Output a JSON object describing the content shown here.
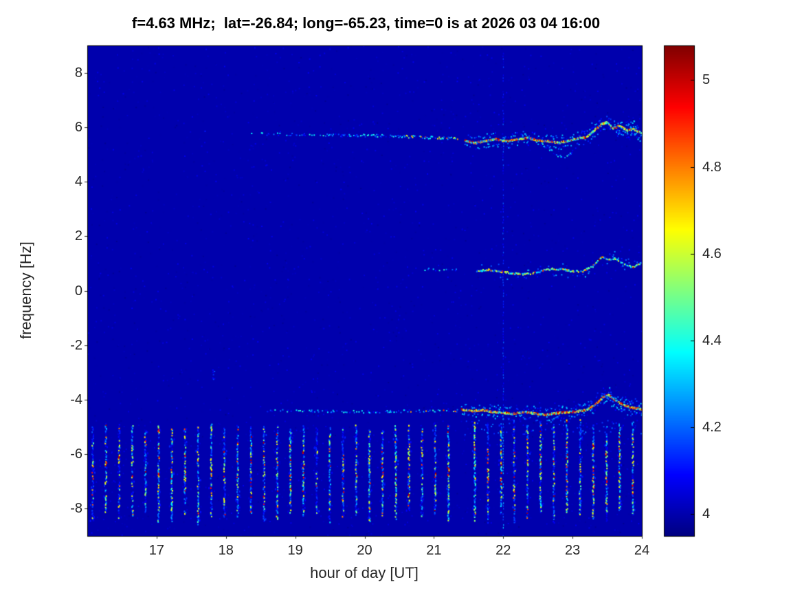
{
  "chart_data": {
    "type": "heatmap",
    "title": "f=4.63 MHz;  lat=-26.84; long=-65.23, time=0 is at 2026 03 04 16:00",
    "xlabel": "hour of day [UT]",
    "ylabel": "frequency [Hz]",
    "xlim": [
      16,
      24
    ],
    "ylim": [
      -9,
      9
    ],
    "xticks": [
      17,
      18,
      19,
      20,
      21,
      22,
      23,
      24
    ],
    "yticks": [
      -8,
      -6,
      -4,
      -2,
      0,
      2,
      4,
      6,
      8
    ],
    "grid": false,
    "legend": "none",
    "background_value": 4.0,
    "colorbar": {
      "colormap": "jet",
      "ticks": [
        4,
        4.2,
        4.4,
        4.6,
        4.8,
        5
      ],
      "value_range": [
        3.95,
        5.08
      ],
      "position": "right"
    },
    "features": {
      "pulse_train": {
        "description": "periodic vertical stripes of enhanced spectral power in the lower band",
        "x_start": 16.08,
        "x_end": 23.97,
        "x_spacing": 0.19,
        "gap_x": [
          21.32,
          21.5
        ],
        "y_top": -4.85,
        "y_bottom": -8.6,
        "hot_spots_y": [
          -6.2,
          -7.1
        ],
        "value_range": [
          4.02,
          5.05
        ]
      },
      "vertical_marker": {
        "description": "faint dotted vertical line spanning full height",
        "x": 22
      },
      "speckle_cluster": {
        "x": 17.82,
        "y": -3.05
      },
      "traces": [
        {
          "name": "upper-doppler-trace",
          "y_center": 5.6,
          "sparse_range": [
            18.35,
            21.35
          ],
          "sparse_path": [
            [
              18.35,
              5.75
            ],
            [
              20.3,
              5.68
            ],
            [
              21.35,
              5.58
            ]
          ],
          "dense_range": [
            21.45,
            24
          ],
          "dense_path": [
            [
              21.45,
              5.5
            ],
            [
              21.6,
              5.42
            ],
            [
              21.75,
              5.5
            ],
            [
              21.9,
              5.55
            ],
            [
              22.05,
              5.48
            ],
            [
              22.2,
              5.55
            ],
            [
              22.35,
              5.6
            ],
            [
              22.5,
              5.52
            ],
            [
              22.65,
              5.48
            ],
            [
              22.8,
              5.42
            ],
            [
              22.95,
              5.5
            ],
            [
              23.1,
              5.6
            ],
            [
              23.2,
              5.62
            ],
            [
              23.3,
              5.85
            ],
            [
              23.42,
              6.1
            ],
            [
              23.5,
              6.18
            ],
            [
              23.58,
              5.95
            ],
            [
              23.68,
              6.05
            ],
            [
              23.78,
              5.88
            ],
            [
              23.88,
              5.92
            ],
            [
              24,
              5.78
            ]
          ],
          "dip_branch": [
            [
              22.55,
              5.4
            ],
            [
              22.68,
              5.15
            ],
            [
              22.8,
              4.95
            ],
            [
              22.9,
              4.88
            ],
            [
              23.0,
              5.1
            ],
            [
              23.08,
              5.35
            ]
          ],
          "peak": {
            "x": 23.5,
            "y": 6.18
          }
        },
        {
          "name": "mid-doppler-trace",
          "y_center": 0.8,
          "sparse_range": [
            20.85,
            21.35
          ],
          "sparse_path": [
            [
              20.85,
              0.78
            ],
            [
              21.35,
              0.75
            ]
          ],
          "dense_range": [
            21.62,
            24
          ],
          "dense_path": [
            [
              21.62,
              0.72
            ],
            [
              21.8,
              0.76
            ],
            [
              21.95,
              0.7
            ],
            [
              22.1,
              0.65
            ],
            [
              22.25,
              0.6
            ],
            [
              22.4,
              0.63
            ],
            [
              22.55,
              0.72
            ],
            [
              22.7,
              0.8
            ],
            [
              22.85,
              0.78
            ],
            [
              23.0,
              0.7
            ],
            [
              23.15,
              0.72
            ],
            [
              23.3,
              0.9
            ],
            [
              23.42,
              1.25
            ],
            [
              23.52,
              1.12
            ],
            [
              23.62,
              1.18
            ],
            [
              23.75,
              0.95
            ],
            [
              23.88,
              0.86
            ],
            [
              24,
              1.02
            ]
          ],
          "peak": {
            "x": 23.42,
            "y": 1.25
          }
        },
        {
          "name": "lower-doppler-trace",
          "y_center": -4.4,
          "sparse_range": [
            18.6,
            21.35
          ],
          "sparse_path": [
            [
              18.6,
              -4.4
            ],
            [
              20.0,
              -4.45
            ],
            [
              21.35,
              -4.4
            ]
          ],
          "dense_range": [
            21.4,
            24
          ],
          "dense_path": [
            [
              21.4,
              -4.35
            ],
            [
              21.55,
              -4.42
            ],
            [
              21.7,
              -4.38
            ],
            [
              21.85,
              -4.45
            ],
            [
              22.0,
              -4.48
            ],
            [
              22.15,
              -4.52
            ],
            [
              22.3,
              -4.46
            ],
            [
              22.45,
              -4.5
            ],
            [
              22.6,
              -4.56
            ],
            [
              22.75,
              -4.5
            ],
            [
              22.9,
              -4.46
            ],
            [
              23.05,
              -4.44
            ],
            [
              23.2,
              -4.38
            ],
            [
              23.32,
              -4.2
            ],
            [
              23.45,
              -3.9
            ],
            [
              23.52,
              -3.82
            ],
            [
              23.6,
              -4.0
            ],
            [
              23.7,
              -4.15
            ],
            [
              23.82,
              -4.28
            ],
            [
              24,
              -4.35
            ]
          ],
          "peak": {
            "x": 23.52,
            "y": -3.82
          }
        }
      ]
    }
  }
}
